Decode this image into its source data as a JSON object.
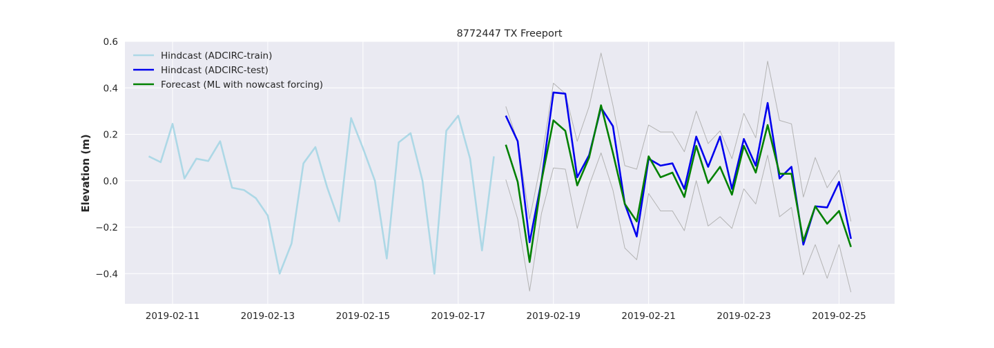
{
  "chart_data": {
    "type": "line",
    "title": "8772447 TX Freeport",
    "xlabel": "",
    "ylabel": "Elevation (m)",
    "xlim": [
      "2019-02-10 00:00",
      "2019-02-26 04:00"
    ],
    "ylim": [
      -0.53,
      0.6
    ],
    "y_ticks": [
      -0.4,
      -0.2,
      0.0,
      0.2,
      0.4,
      0.6
    ],
    "y_tick_labels": [
      "−0.4",
      "−0.2",
      "0.0",
      "0.2",
      "0.4",
      "0.6"
    ],
    "x_ticks": [
      "2019-02-11",
      "2019-02-13",
      "2019-02-15",
      "2019-02-17",
      "2019-02-19",
      "2019-02-21",
      "2019-02-23",
      "2019-02-25"
    ],
    "x_tick_labels": [
      "2019-02-11",
      "2019-02-13",
      "2019-02-15",
      "2019-02-17",
      "2019-02-19",
      "2019-02-21",
      "2019-02-23",
      "2019-02-25"
    ],
    "grid": true,
    "legend_position": "top-left",
    "background": "#eaeaf2",
    "series": [
      {
        "name": "Hindcast (ADCIRC-train)",
        "color": "#add8e6",
        "x": [
          "2019-02-10 12:00",
          "2019-02-10 18:00",
          "2019-02-11 00:00",
          "2019-02-11 06:00",
          "2019-02-11 12:00",
          "2019-02-11 18:00",
          "2019-02-12 00:00",
          "2019-02-12 06:00",
          "2019-02-12 12:00",
          "2019-02-12 18:00",
          "2019-02-13 00:00",
          "2019-02-13 06:00",
          "2019-02-13 12:00",
          "2019-02-13 18:00",
          "2019-02-14 00:00",
          "2019-02-14 06:00",
          "2019-02-14 12:00",
          "2019-02-14 18:00",
          "2019-02-15 00:00",
          "2019-02-15 06:00",
          "2019-02-15 12:00",
          "2019-02-15 18:00",
          "2019-02-16 00:00",
          "2019-02-16 06:00",
          "2019-02-16 12:00",
          "2019-02-16 18:00",
          "2019-02-17 00:00",
          "2019-02-17 06:00",
          "2019-02-17 12:00",
          "2019-02-17 18:00"
        ],
        "values": [
          0.105,
          0.08,
          0.245,
          0.01,
          0.095,
          0.085,
          0.17,
          -0.03,
          -0.04,
          -0.075,
          -0.15,
          -0.4,
          -0.27,
          0.075,
          0.145,
          -0.03,
          -0.175,
          0.27,
          0.14,
          0.0,
          -0.335,
          0.165,
          0.205,
          0.0,
          -0.4,
          0.215,
          0.28,
          0.095,
          -0.3,
          0.105
        ]
      },
      {
        "name": "Hindcast (ADCIRC-test)",
        "color": "#0000ee",
        "x": [
          "2019-02-18 00:00",
          "2019-02-18 06:00",
          "2019-02-18 12:00",
          "2019-02-18 18:00",
          "2019-02-19 00:00",
          "2019-02-19 06:00",
          "2019-02-19 12:00",
          "2019-02-19 18:00",
          "2019-02-20 00:00",
          "2019-02-20 06:00",
          "2019-02-20 12:00",
          "2019-02-20 18:00",
          "2019-02-21 00:00",
          "2019-02-21 06:00",
          "2019-02-21 12:00",
          "2019-02-21 18:00",
          "2019-02-22 00:00",
          "2019-02-22 06:00",
          "2019-02-22 12:00",
          "2019-02-22 18:00",
          "2019-02-23 00:00",
          "2019-02-23 06:00",
          "2019-02-23 12:00",
          "2019-02-23 18:00",
          "2019-02-24 00:00",
          "2019-02-24 06:00",
          "2019-02-24 12:00",
          "2019-02-24 18:00",
          "2019-02-25 00:00",
          "2019-02-25 06:00"
        ],
        "values": [
          0.28,
          0.17,
          -0.265,
          0.0,
          0.38,
          0.375,
          0.015,
          0.11,
          0.315,
          0.235,
          -0.1,
          -0.24,
          0.095,
          0.065,
          0.075,
          -0.035,
          0.19,
          0.06,
          0.19,
          -0.035,
          0.18,
          0.065,
          0.335,
          0.01,
          0.06,
          -0.275,
          -0.11,
          -0.115,
          -0.005,
          -0.25
        ]
      },
      {
        "name": "Forecast (ML with nowcast forcing)",
        "color": "#008000",
        "x": [
          "2019-02-18 00:00",
          "2019-02-18 06:00",
          "2019-02-18 12:00",
          "2019-02-18 18:00",
          "2019-02-19 00:00",
          "2019-02-19 06:00",
          "2019-02-19 12:00",
          "2019-02-19 18:00",
          "2019-02-20 00:00",
          "2019-02-20 06:00",
          "2019-02-20 12:00",
          "2019-02-20 18:00",
          "2019-02-21 00:00",
          "2019-02-21 06:00",
          "2019-02-21 12:00",
          "2019-02-21 18:00",
          "2019-02-22 00:00",
          "2019-02-22 06:00",
          "2019-02-22 12:00",
          "2019-02-22 18:00",
          "2019-02-23 00:00",
          "2019-02-23 06:00",
          "2019-02-23 12:00",
          "2019-02-23 18:00",
          "2019-02-24 00:00",
          "2019-02-24 06:00",
          "2019-02-24 12:00",
          "2019-02-24 18:00",
          "2019-02-25 00:00",
          "2019-02-25 06:00"
        ],
        "values": [
          0.155,
          -0.005,
          -0.35,
          0.0,
          0.26,
          0.215,
          -0.02,
          0.1,
          0.325,
          0.12,
          -0.1,
          -0.175,
          0.105,
          0.015,
          0.035,
          -0.07,
          0.15,
          -0.01,
          0.06,
          -0.06,
          0.15,
          0.035,
          0.24,
          0.03,
          0.03,
          -0.26,
          -0.11,
          -0.185,
          -0.13,
          -0.285
        ]
      },
      {
        "color": "#b3b3b3",
        "x": [
          "2019-02-18 00:00",
          "2019-02-18 06:00",
          "2019-02-18 12:00",
          "2019-02-18 18:00",
          "2019-02-19 00:00",
          "2019-02-19 06:00",
          "2019-02-19 12:00",
          "2019-02-19 18:00",
          "2019-02-20 00:00",
          "2019-02-20 06:00",
          "2019-02-20 12:00",
          "2019-02-20 18:00",
          "2019-02-21 00:00",
          "2019-02-21 06:00",
          "2019-02-21 12:00",
          "2019-02-21 18:00",
          "2019-02-22 00:00",
          "2019-02-22 06:00",
          "2019-02-22 12:00",
          "2019-02-22 18:00",
          "2019-02-23 00:00",
          "2019-02-23 06:00",
          "2019-02-23 12:00",
          "2019-02-23 18:00",
          "2019-02-24 00:00",
          "2019-02-24 06:00",
          "2019-02-24 12:00",
          "2019-02-24 18:00",
          "2019-02-25 00:00",
          "2019-02-25 06:00"
        ],
        "values": [
          0.32,
          0.17,
          -0.165,
          0.09,
          0.42,
          0.375,
          0.17,
          0.32,
          0.55,
          0.325,
          0.065,
          0.05,
          0.24,
          0.21,
          0.21,
          0.125,
          0.3,
          0.16,
          0.215,
          0.095,
          0.29,
          0.185,
          0.515,
          0.26,
          0.245,
          -0.07,
          0.1,
          -0.03,
          0.045,
          -0.175
        ]
      },
      {
        "color": "#b3b3b3",
        "x": [
          "2019-02-18 00:00",
          "2019-02-18 06:00",
          "2019-02-18 12:00",
          "2019-02-18 18:00",
          "2019-02-19 00:00",
          "2019-02-19 06:00",
          "2019-02-19 12:00",
          "2019-02-19 18:00",
          "2019-02-20 00:00",
          "2019-02-20 06:00",
          "2019-02-20 12:00",
          "2019-02-20 18:00",
          "2019-02-21 00:00",
          "2019-02-21 06:00",
          "2019-02-21 12:00",
          "2019-02-21 18:00",
          "2019-02-22 00:00",
          "2019-02-22 06:00",
          "2019-02-22 12:00",
          "2019-02-22 18:00",
          "2019-02-23 00:00",
          "2019-02-23 06:00",
          "2019-02-23 12:00",
          "2019-02-23 18:00",
          "2019-02-24 00:00",
          "2019-02-24 06:00",
          "2019-02-24 12:00",
          "2019-02-24 18:00",
          "2019-02-25 00:00",
          "2019-02-25 06:00"
        ],
        "values": [
          0.005,
          -0.165,
          -0.475,
          -0.14,
          0.055,
          0.05,
          -0.205,
          -0.02,
          0.12,
          -0.04,
          -0.29,
          -0.34,
          -0.055,
          -0.13,
          -0.13,
          -0.215,
          0.0,
          -0.195,
          -0.155,
          -0.205,
          -0.035,
          -0.1,
          0.11,
          -0.155,
          -0.115,
          -0.405,
          -0.275,
          -0.42,
          -0.275,
          -0.48
        ]
      }
    ]
  }
}
